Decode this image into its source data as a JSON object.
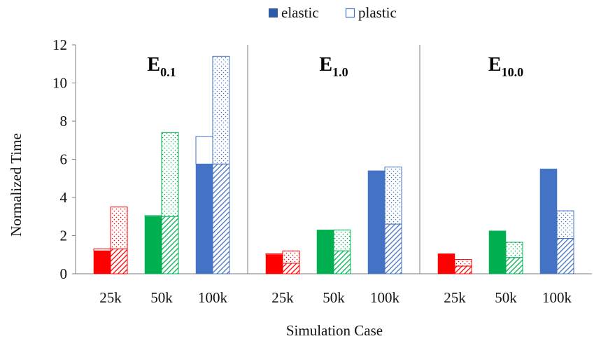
{
  "chart_data": {
    "type": "bar",
    "xlabel": "Simulation Case",
    "ylabel": "Normalized Time",
    "ylim": [
      0,
      12
    ],
    "yticks": [
      0,
      2,
      4,
      6,
      8,
      10,
      12
    ],
    "grid": false,
    "legend_position": "top-center",
    "legend": [
      {
        "key": "elastic",
        "label": "elastic",
        "style": "solid"
      },
      {
        "key": "plastic",
        "label": "plastic",
        "style": "outline"
      }
    ],
    "colors": {
      "25k": "#ff0000",
      "50k": "#00b050",
      "100k": "#4472c4"
    },
    "panels": [
      {
        "title_main": "E",
        "title_sub": "0.1",
        "categories": [
          "25k",
          "50k",
          "100k"
        ],
        "elastic": {
          "hatched": [
            1.2,
            3.0,
            5.75
          ],
          "total": [
            1.3,
            3.05,
            7.2
          ]
        },
        "plastic": {
          "hatched": [
            1.3,
            3.0,
            5.75
          ],
          "total": [
            3.5,
            7.4,
            11.4
          ]
        }
      },
      {
        "title_main": "E",
        "title_sub": "1.0",
        "categories": [
          "25k",
          "50k",
          "100k"
        ],
        "elastic": {
          "hatched": [
            1.0,
            2.3,
            5.4
          ],
          "total": [
            1.05,
            2.3,
            5.4
          ]
        },
        "plastic": {
          "hatched": [
            0.55,
            1.2,
            2.6
          ],
          "total": [
            1.2,
            2.3,
            5.6
          ]
        }
      },
      {
        "title_main": "E",
        "title_sub": "10.0",
        "categories": [
          "25k",
          "50k",
          "100k"
        ],
        "elastic": {
          "hatched": [
            1.05,
            2.25,
            5.5
          ],
          "total": [
            1.05,
            2.25,
            5.5
          ]
        },
        "plastic": {
          "hatched": [
            0.4,
            0.85,
            1.85
          ],
          "total": [
            0.75,
            1.65,
            3.3
          ]
        }
      }
    ]
  }
}
